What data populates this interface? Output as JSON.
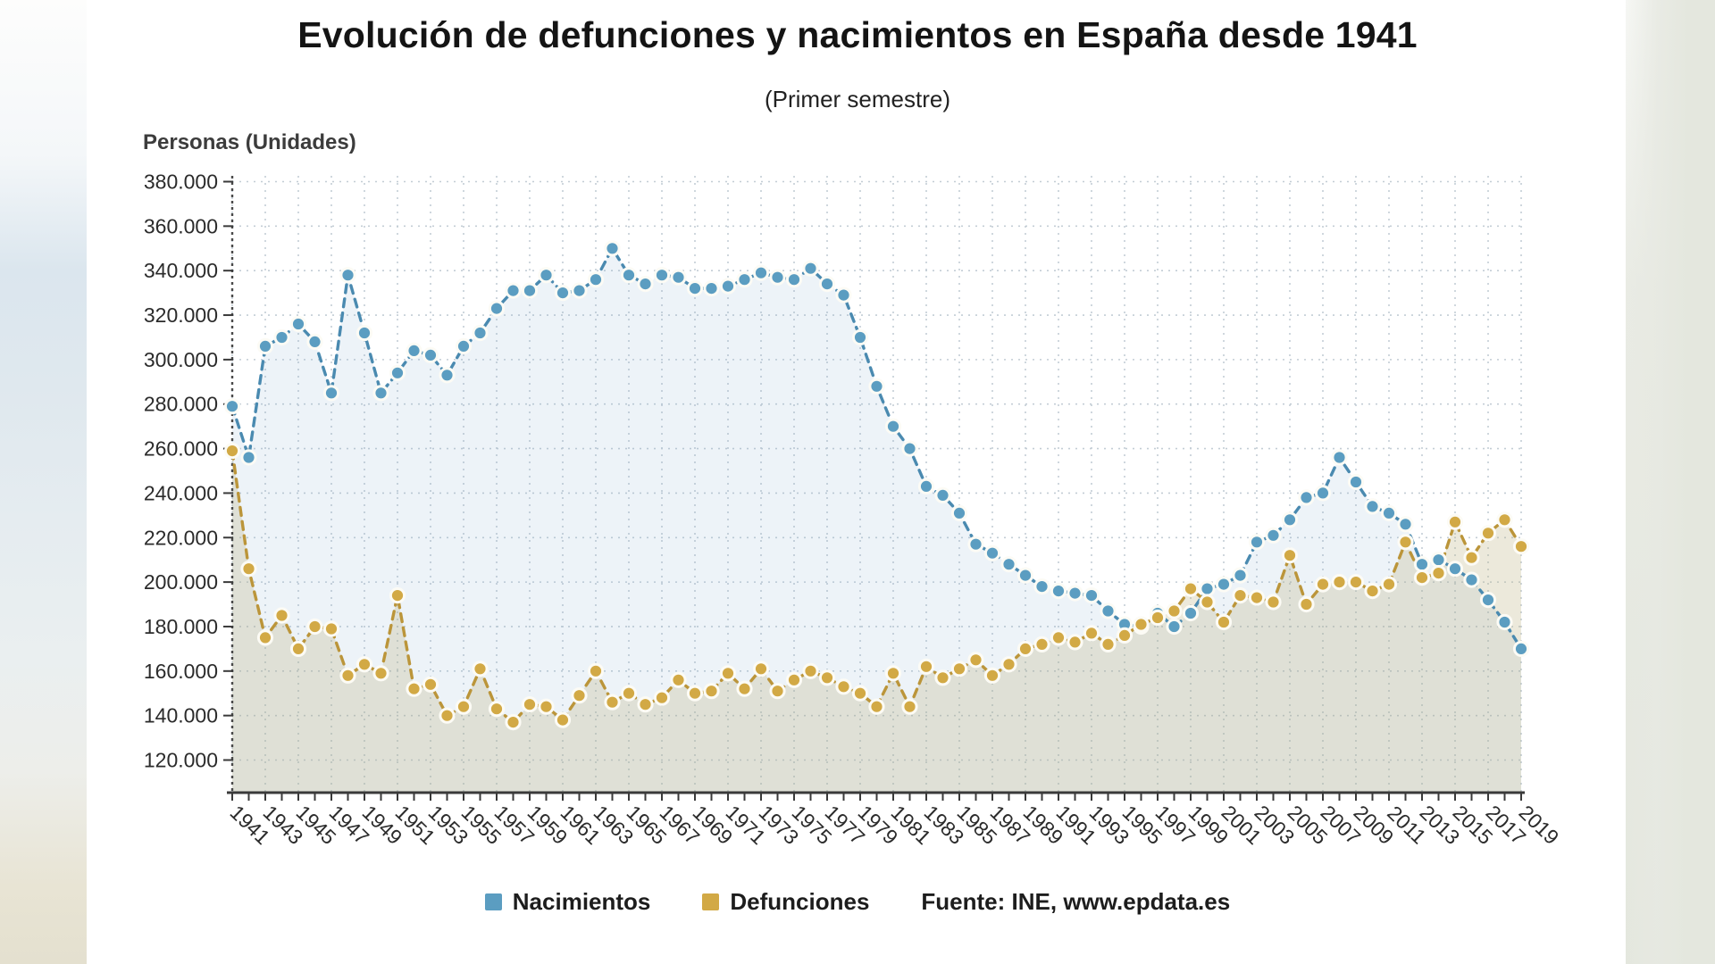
{
  "title": "Evolución de defunciones y nacimientos en España desde 1941",
  "subtitle": "(Primer semestre)",
  "y_axis_title": "Personas (Unidades)",
  "legend": {
    "items": [
      {
        "label": "Nacimientos",
        "color": "#5b9dc1"
      },
      {
        "label": "Defunciones",
        "color": "#d2a945"
      }
    ],
    "source": "Fuente: INE, www.epdata.es"
  },
  "colors": {
    "axis": "#3a3a3a",
    "grid": "#c3cdd5",
    "card_background": "#ffffff",
    "nacimientos_dot": "#5b9dc1",
    "nacimientos_line": "#4a8ab0",
    "defunciones_dot": "#d2a945",
    "defunciones_line": "#bb953a"
  },
  "chart_data": {
    "type": "line",
    "title": "Evolución de defunciones y nacimientos en España desde 1941",
    "subtitle": "(Primer semestre)",
    "xlabel": "",
    "ylabel": "Personas (Unidades)",
    "ylim": [
      105000,
      380000
    ],
    "grid": true,
    "legend_position": "bottom",
    "x": [
      1941,
      1942,
      1943,
      1944,
      1945,
      1946,
      1947,
      1948,
      1949,
      1950,
      1951,
      1952,
      1953,
      1954,
      1955,
      1956,
      1957,
      1958,
      1959,
      1960,
      1961,
      1962,
      1963,
      1964,
      1965,
      1966,
      1967,
      1968,
      1969,
      1970,
      1971,
      1972,
      1973,
      1974,
      1975,
      1976,
      1977,
      1978,
      1979,
      1980,
      1981,
      1982,
      1983,
      1984,
      1985,
      1986,
      1987,
      1988,
      1989,
      1990,
      1991,
      1992,
      1993,
      1994,
      1995,
      1996,
      1997,
      1998,
      1999,
      2000,
      2001,
      2002,
      2003,
      2004,
      2005,
      2006,
      2007,
      2008,
      2009,
      2010,
      2011,
      2012,
      2013,
      2014,
      2015,
      2016,
      2017,
      2018,
      2019
    ],
    "x_tick_years": [
      1941,
      1943,
      1945,
      1947,
      1949,
      1951,
      1953,
      1955,
      1957,
      1959,
      1961,
      1963,
      1965,
      1967,
      1969,
      1971,
      1973,
      1975,
      1977,
      1979,
      1981,
      1983,
      1985,
      1987,
      1989,
      1991,
      1993,
      1995,
      1997,
      1999,
      2001,
      2003,
      2005,
      2007,
      2009,
      2011,
      2013,
      2015,
      2017,
      2019
    ],
    "y_ticks": [
      {
        "value": 120000,
        "label": "120.000"
      },
      {
        "value": 140000,
        "label": "140.000"
      },
      {
        "value": 160000,
        "label": "160.000"
      },
      {
        "value": 180000,
        "label": "180.000"
      },
      {
        "value": 200000,
        "label": "200.000"
      },
      {
        "value": 220000,
        "label": "220.000"
      },
      {
        "value": 240000,
        "label": "240.000"
      },
      {
        "value": 260000,
        "label": "260.000"
      },
      {
        "value": 280000,
        "label": "280.000"
      },
      {
        "value": 300000,
        "label": "300.000"
      },
      {
        "value": 320000,
        "label": "320.000"
      },
      {
        "value": 340000,
        "label": "340.000"
      },
      {
        "value": 360000,
        "label": "360.000"
      },
      {
        "value": 380000,
        "label": "380.000"
      }
    ],
    "series": [
      {
        "name": "Nacimientos",
        "color": "#5b9dc1",
        "line_color": "#4a8ab0",
        "fill": "rgba(125,170,205,0.14)",
        "values": [
          279000,
          256000,
          306000,
          310000,
          316000,
          308000,
          285000,
          338000,
          312000,
          285000,
          294000,
          304000,
          302000,
          293000,
          306000,
          312000,
          323000,
          331000,
          331000,
          338000,
          330000,
          331000,
          336000,
          350000,
          338000,
          334000,
          338000,
          337000,
          332000,
          332000,
          333000,
          336000,
          339000,
          337000,
          336000,
          341000,
          334000,
          329000,
          310000,
          288000,
          270000,
          260000,
          243000,
          239000,
          231000,
          217000,
          213000,
          208000,
          203000,
          198000,
          196000,
          195000,
          194000,
          187000,
          181000,
          180000,
          186000,
          180000,
          186000,
          197000,
          199000,
          203000,
          218000,
          221000,
          228000,
          238000,
          240000,
          256000,
          245000,
          234000,
          231000,
          226000,
          208000,
          210000,
          206000,
          201000,
          192000,
          182000,
          170000
        ]
      },
      {
        "name": "Defunciones",
        "color": "#d2a945",
        "line_color": "#bb953a",
        "fill": "rgba(186,176,125,0.28)",
        "values": [
          259000,
          206000,
          175000,
          185000,
          170000,
          180000,
          179000,
          158000,
          163000,
          159000,
          194000,
          152000,
          154000,
          140000,
          144000,
          161000,
          143000,
          137000,
          145000,
          144000,
          138000,
          149000,
          160000,
          146000,
          150000,
          145000,
          148000,
          156000,
          150000,
          151000,
          159000,
          152000,
          161000,
          151000,
          156000,
          160000,
          157000,
          153000,
          150000,
          144000,
          159000,
          144000,
          162000,
          157000,
          161000,
          165000,
          158000,
          163000,
          170000,
          172000,
          175000,
          173000,
          177000,
          172000,
          176000,
          181000,
          184000,
          187000,
          197000,
          191000,
          182000,
          194000,
          193000,
          191000,
          212000,
          190000,
          199000,
          200000,
          200000,
          196000,
          199000,
          218000,
          202000,
          204000,
          227000,
          211000,
          222000,
          228000,
          216000
        ]
      }
    ]
  }
}
